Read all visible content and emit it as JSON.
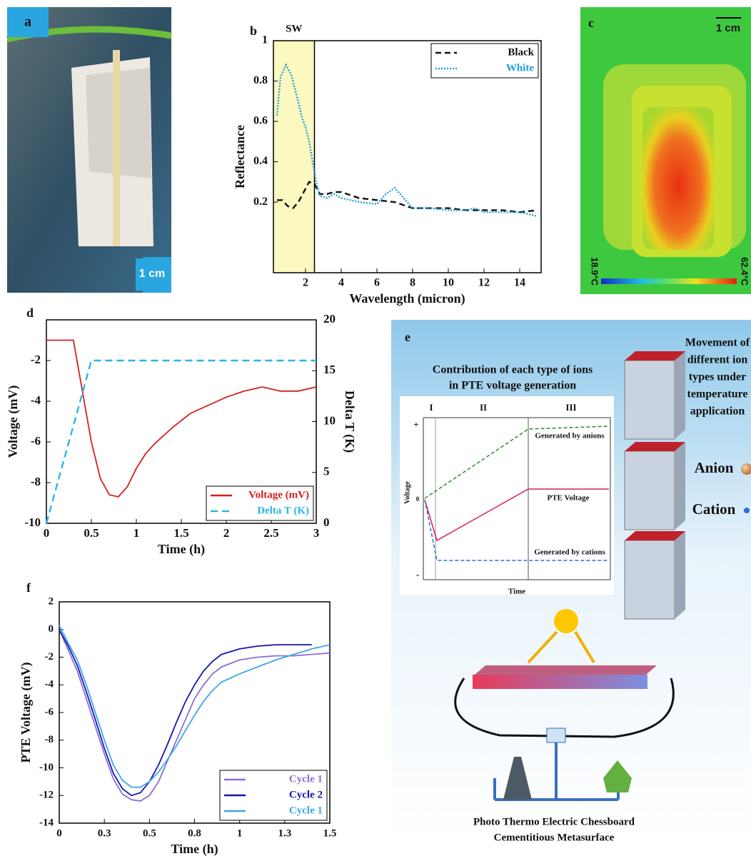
{
  "chart_data": [
    {
      "type": "line",
      "panel_label": "b",
      "annotation": "SW",
      "shade_x": [
        0.2,
        2.5
      ],
      "xlabel": "Wavelength (micron)",
      "ylabel": "Reflectance",
      "xlim": [
        0.2,
        15.2
      ],
      "ylim": [
        -0.15,
        1
      ],
      "xticks": [
        2,
        4,
        6,
        8,
        10,
        12,
        14
      ],
      "yticks": [
        0.2,
        0.4,
        0.6,
        0.8,
        1
      ],
      "legend": "upper right",
      "series": [
        {
          "name": "Black",
          "color": "#111111",
          "dash": "dashed",
          "x": [
            0.4,
            0.7,
            1.0,
            1.3,
            1.6,
            1.9,
            2.2,
            2.5,
            2.8,
            3.2,
            3.6,
            4,
            5,
            6,
            7,
            8,
            9,
            10,
            11,
            12,
            13,
            14,
            15
          ],
          "values": [
            0.21,
            0.21,
            0.18,
            0.17,
            0.2,
            0.25,
            0.3,
            0.29,
            0.24,
            0.24,
            0.25,
            0.25,
            0.22,
            0.21,
            0.2,
            0.17,
            0.17,
            0.17,
            0.16,
            0.16,
            0.16,
            0.15,
            0.16
          ]
        },
        {
          "name": "White",
          "color": "#1ca0dc",
          "dash": "dotted",
          "x": [
            0.4,
            0.6,
            0.9,
            1.2,
            1.5,
            1.8,
            2.0,
            2.2,
            2.4,
            2.6,
            2.8,
            3.2,
            3.6,
            4,
            5,
            6,
            6.5,
            7,
            7.5,
            8,
            9,
            10,
            11,
            11.5,
            12,
            13,
            14,
            15
          ],
          "values": [
            0.63,
            0.82,
            0.88,
            0.83,
            0.73,
            0.62,
            0.57,
            0.5,
            0.4,
            0.3,
            0.23,
            0.22,
            0.24,
            0.22,
            0.2,
            0.19,
            0.24,
            0.27,
            0.22,
            0.17,
            0.17,
            0.16,
            0.16,
            0.17,
            0.15,
            0.15,
            0.15,
            0.13
          ]
        }
      ]
    },
    {
      "type": "line",
      "panel_label": "d",
      "xlabel": "Time (h)",
      "ylabel": "Voltage (mV)",
      "y2label": "Delta T (K)",
      "xlim": [
        0,
        3
      ],
      "ylim": [
        -10,
        0
      ],
      "y2lim": [
        0,
        20
      ],
      "xticks": [
        0,
        0.5,
        1,
        1.5,
        2,
        2.5,
        3
      ],
      "yticks": [
        -10,
        -8,
        -6,
        -4,
        -2
      ],
      "y2ticks": [
        0,
        5,
        10,
        15,
        20
      ],
      "legend": "lower right",
      "series": [
        {
          "name": "Voltage (mV)",
          "color": "#d42020",
          "dash": "solid",
          "x": [
            0,
            0.3,
            0.4,
            0.5,
            0.6,
            0.7,
            0.8,
            0.9,
            1.0,
            1.1,
            1.2,
            1.4,
            1.6,
            1.8,
            2.0,
            2.2,
            2.4,
            2.6,
            2.8,
            3
          ],
          "values": [
            -1,
            -1,
            -3.5,
            -6,
            -7.8,
            -8.6,
            -8.7,
            -8.2,
            -7.3,
            -6.6,
            -6.1,
            -5.3,
            -4.6,
            -4.2,
            -3.8,
            -3.5,
            -3.3,
            -3.5,
            -3.5,
            -3.3
          ]
        },
        {
          "name": "Delta T (K)",
          "color": "#29b6e8",
          "dash": "longdash",
          "axis": "y2",
          "x": [
            0,
            0.5,
            3
          ],
          "values": [
            0,
            16,
            16
          ]
        }
      ]
    },
    {
      "type": "line",
      "panel_label": "f",
      "xlabel": "Time (h)",
      "ylabel": "PTE Voltage (mV)",
      "xlim": [
        0,
        1.5
      ],
      "ylim": [
        -14,
        2
      ],
      "xticks": [
        0,
        {
          "value": 0.25,
          "label": "0.3"
        },
        0.5,
        {
          "value": 0.75,
          "label": "0.8"
        },
        1,
        {
          "value": 1.25,
          "label": "1.3"
        },
        1.5
      ],
      "yticks": [
        -14,
        -12,
        -10,
        -8,
        -6,
        -4,
        -2,
        0,
        2
      ],
      "legend": "lower right",
      "x": [
        0,
        0.05,
        0.1,
        0.15,
        0.2,
        0.25,
        0.3,
        0.35,
        0.4,
        0.45,
        0.5,
        0.55,
        0.6,
        0.65,
        0.7,
        0.75,
        0.8,
        0.85,
        0.9,
        1.0,
        1.1,
        1.2,
        1.3,
        1.4,
        1.5
      ],
      "series": [
        {
          "name": "Cycle 1",
          "color": "#8b6fd6",
          "dash": "solid",
          "values": [
            0,
            -1.5,
            -3,
            -5,
            -7,
            -9,
            -10.8,
            -11.9,
            -12.3,
            -12.4,
            -12,
            -11,
            -9.5,
            -8,
            -6.5,
            -5,
            -4,
            -3.2,
            -2.7,
            -2.2,
            -2,
            -1.9,
            -1.9,
            -1.8,
            -1.7
          ]
        },
        {
          "name": "Cycle 2",
          "color": "#1515b0",
          "dash": "solid",
          "values": [
            0,
            -1.2,
            -2.6,
            -4.5,
            -6.5,
            -8.6,
            -10.4,
            -11.5,
            -12,
            -11.8,
            -11,
            -9.8,
            -8.3,
            -6.7,
            -5.2,
            -4,
            -3,
            -2.3,
            -1.8,
            -1.4,
            -1.2,
            -1.1,
            -1.1,
            -1.1,
            null
          ]
        },
        {
          "name": "Cycle 1",
          "color": "#3ea6e8",
          "dash": "solid",
          "values": [
            0.3,
            -1,
            -2.2,
            -4,
            -6,
            -8,
            -9.8,
            -10.9,
            -11.4,
            -11.4,
            -11,
            -10.3,
            -9.4,
            -8.4,
            -7.3,
            -6.2,
            -5.2,
            -4.4,
            -3.8,
            -3.2,
            -2.7,
            -2.2,
            -1.8,
            -1.4,
            -1.1
          ]
        }
      ]
    }
  ],
  "panel_a": {
    "label": "a",
    "scale": "1 cm"
  },
  "panel_c": {
    "label": "c",
    "scale": "1 cm",
    "min_temp": "18.9°C",
    "max_temp": "62.4°C"
  },
  "panel_e": {
    "label": "e",
    "inset_title": [
      "Contribution of each type of ions",
      "in PTE voltage generation"
    ],
    "regions": [
      "I",
      "II",
      "III"
    ],
    "y_axis": "Voltage",
    "x_axis": "Time",
    "y_marks": [
      "+",
      "0",
      "-"
    ],
    "curves": [
      "Generated by anions",
      "PTE Voltage",
      "Generated by cations"
    ],
    "side_title": [
      "Movement of",
      "different ion",
      "types under",
      "temperature",
      "application"
    ],
    "legend": [
      "Anion",
      "Cation"
    ],
    "caption": [
      "Photo Thermo Electric Chessboard",
      "Cementitious Metasurface"
    ]
  }
}
